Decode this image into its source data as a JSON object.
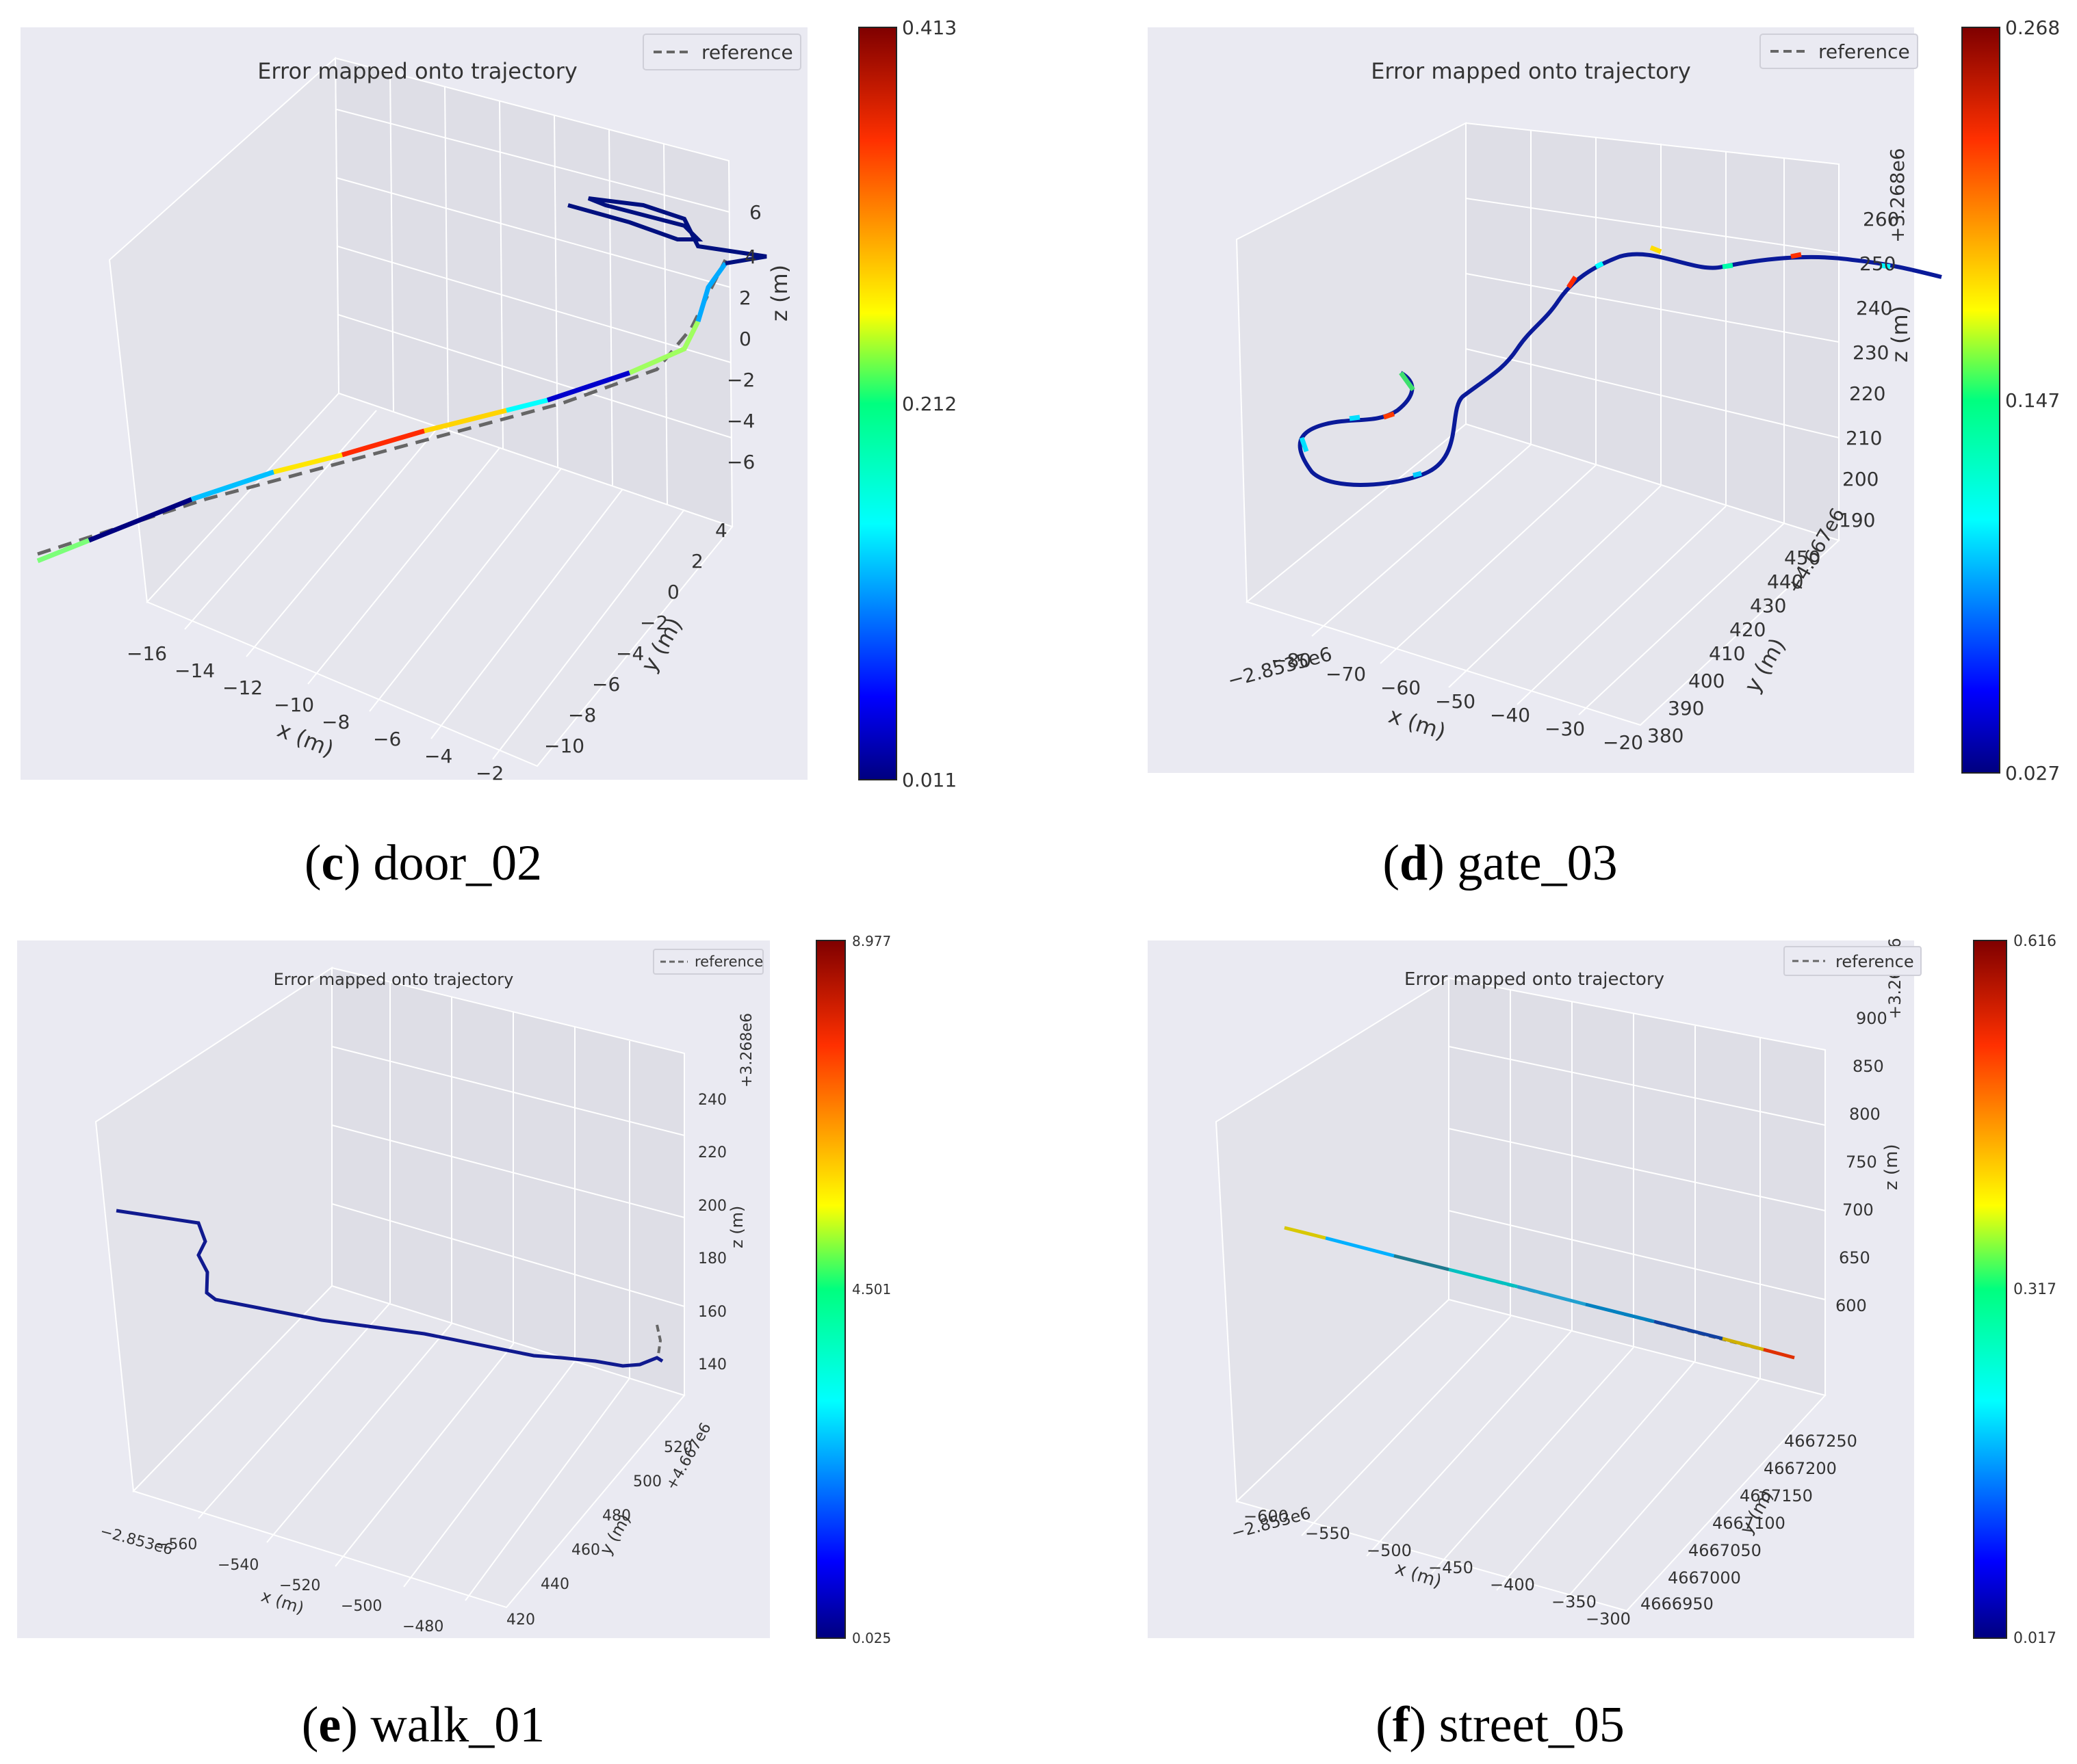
{
  "chart_data": [
    {
      "type": "line",
      "panel_id": "c",
      "title": "Error mapped onto trajectory",
      "legend": {
        "label": "reference",
        "placement": "top-right"
      },
      "xlabel": "x (m)",
      "ylabel": "y (m)",
      "zlabel": "z (m)",
      "x_ticks": [
        "−16",
        "−14",
        "−12",
        "−10",
        "−8",
        "−6",
        "−4",
        "−2"
      ],
      "y_ticks": [
        "−10",
        "−8",
        "−6",
        "−4",
        "−2",
        "0",
        "2",
        "4"
      ],
      "z_ticks": [
        "6",
        "4",
        "2",
        "0",
        "−2",
        "−4",
        "−6"
      ],
      "colorbar": {
        "min": "0.011",
        "mid": "0.212",
        "max": "0.413"
      },
      "caption": {
        "letter": "c",
        "name": "door_02"
      }
    },
    {
      "type": "line",
      "panel_id": "d",
      "title": "Error mapped onto trajectory",
      "legend": {
        "label": "reference",
        "placement": "top-right"
      },
      "xlabel": "x (m)",
      "ylabel": "y (m)",
      "zlabel": "z (m)",
      "x_offset": "−2.8535e6",
      "y_offset": "+4.667e6",
      "z_offset": "+3.268e6",
      "x_ticks": [
        "−80",
        "−70",
        "−60",
        "−50",
        "−40",
        "−30",
        "−20"
      ],
      "y_ticks": [
        "380",
        "390",
        "400",
        "410",
        "420",
        "430",
        "440",
        "450"
      ],
      "z_ticks": [
        "260",
        "250",
        "240",
        "230",
        "220",
        "210",
        "200",
        "190"
      ],
      "colorbar": {
        "min": "0.027",
        "mid": "0.147",
        "max": "0.268"
      },
      "caption": {
        "letter": "d",
        "name": "gate_03"
      }
    },
    {
      "type": "line",
      "panel_id": "e",
      "title": "Error mapped onto trajectory",
      "legend": {
        "label": "reference",
        "placement": "top-right"
      },
      "xlabel": "x (m)",
      "ylabel": "y (m)",
      "zlabel": "z (m)",
      "x_offset": "−2.853e6",
      "y_offset": "+4.667e6",
      "z_offset": "+3.268e6",
      "x_ticks": [
        "−560",
        "−540",
        "−520",
        "−500",
        "−480"
      ],
      "y_ticks": [
        "420",
        "440",
        "460",
        "480",
        "500",
        "520"
      ],
      "z_ticks": [
        "240",
        "220",
        "200",
        "180",
        "160",
        "140"
      ],
      "colorbar": {
        "min": "0.025",
        "mid": "4.501",
        "max": "8.977"
      },
      "caption": {
        "letter": "e",
        "name": "walk_01"
      }
    },
    {
      "type": "line",
      "panel_id": "f",
      "title": "Error mapped onto trajectory",
      "legend": {
        "label": "reference",
        "placement": "top-right"
      },
      "xlabel": "x (m)",
      "ylabel": "y (m)",
      "zlabel": "z (m)",
      "x_offset": "−2.853e6",
      "z_offset": "+3.268e6",
      "x_ticks": [
        "−600",
        "−550",
        "−500",
        "−450",
        "−400",
        "−350",
        "−300"
      ],
      "y_ticks": [
        "4666950",
        "4667000",
        "4667050",
        "4667100",
        "4667150",
        "4667200",
        "4667250"
      ],
      "z_ticks": [
        "900",
        "850",
        "800",
        "750",
        "700",
        "650",
        "600"
      ],
      "colorbar": {
        "min": "0.017",
        "mid": "0.317",
        "max": "0.616"
      },
      "caption": {
        "letter": "f",
        "name": "street_05"
      }
    }
  ]
}
